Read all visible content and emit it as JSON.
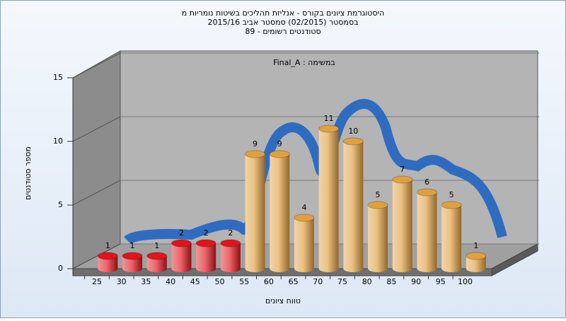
{
  "chart_data": {
    "type": "bar",
    "title": [
      "היסטוגרמת ציונים בקורס - אנליזת תהליכים בשיטות נומריות מ",
      "בסמסטר  (02/2015)  סמסטר אביב 2015/16",
      "סטודנטים רשומים - 89"
    ],
    "annotation": "במשימה : Final_A",
    "xlabel": "טווח ציונים",
    "ylabel": "מספר סטודנטים",
    "categories": [
      "25",
      "30",
      "35",
      "40",
      "45",
      "50",
      "55",
      "60",
      "65",
      "70",
      "75",
      "80",
      "85",
      "90",
      "95",
      "100"
    ],
    "values": [
      1,
      1,
      1,
      2,
      2,
      2,
      9,
      9,
      4,
      11,
      10,
      5,
      7,
      6,
      5,
      1
    ],
    "colors": [
      "#e0141b",
      "#e0141b",
      "#e0141b",
      "#e0141b",
      "#e0141b",
      "#e0141b",
      "#e0a040",
      "#e0a040",
      "#e0a040",
      "#e0a040",
      "#e0a040",
      "#e0a040",
      "#e0a040",
      "#e0a040",
      "#e0a040",
      "#e0a040"
    ],
    "ylim": [
      0,
      15
    ],
    "yticks": [
      0,
      5,
      10,
      15
    ],
    "grid": true
  }
}
